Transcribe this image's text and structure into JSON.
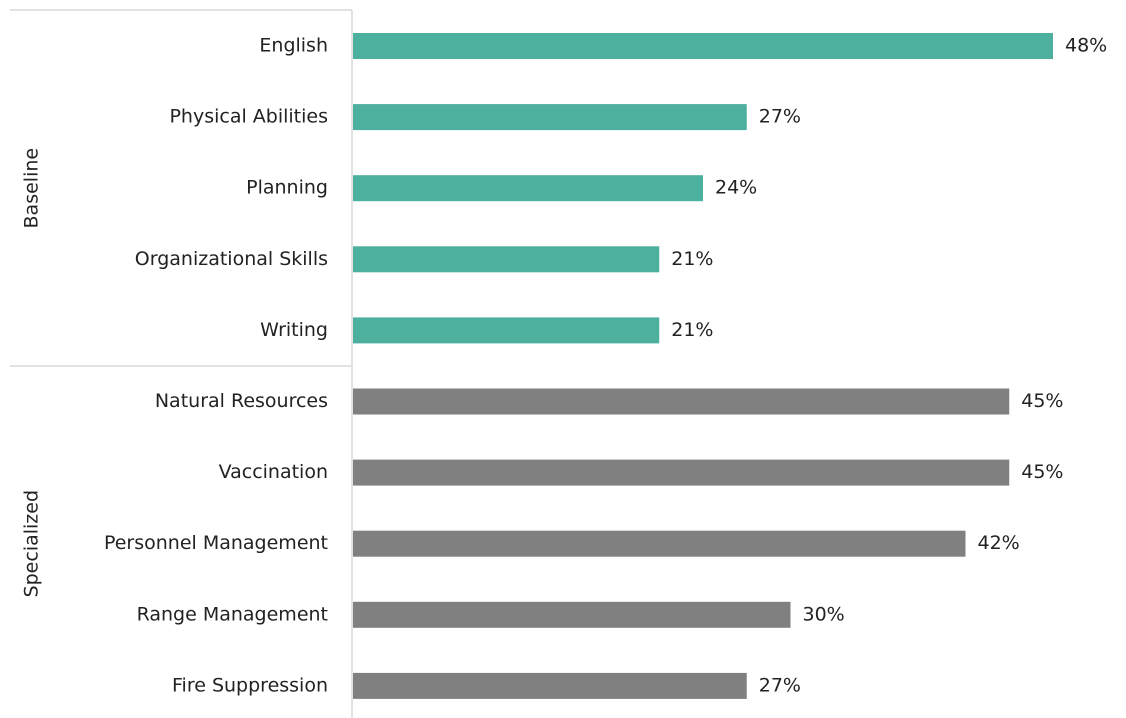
{
  "chart_data": {
    "type": "grouped-hbar",
    "series": [
      {
        "name": "Baseline",
        "color": "#4daf9d",
        "categories": [
          "English",
          "Physical Abilities",
          "Planning",
          "Organizational Skills",
          "Writing"
        ],
        "values": [
          48,
          27,
          24,
          21,
          21
        ],
        "value_labels": [
          "48%",
          "27%",
          "24%",
          "21%",
          "21%"
        ]
      },
      {
        "name": "Specialized",
        "color": "#808080",
        "categories": [
          "Natural Resources",
          "Vaccination",
          "Personnel Management",
          "Range Management",
          "Fire Suppression"
        ],
        "values": [
          45,
          45,
          42,
          30,
          27
        ],
        "value_labels": [
          "45%",
          "45%",
          "42%",
          "30%",
          "27%"
        ]
      }
    ]
  }
}
